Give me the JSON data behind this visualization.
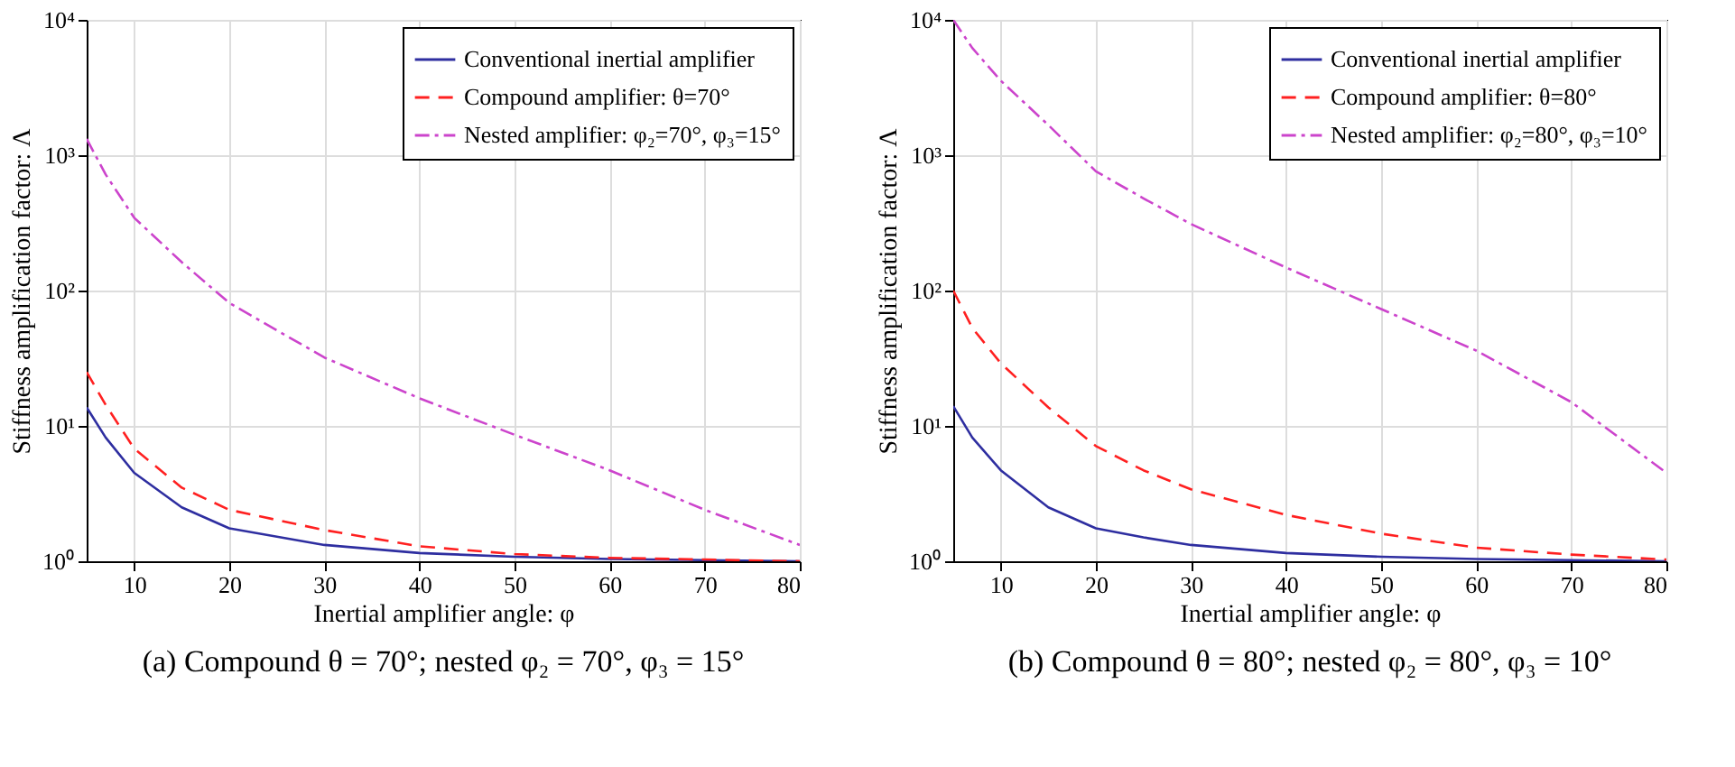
{
  "chart_data": [
    {
      "type": "line",
      "title": "(a) Compound θ = 70°; nested φ₂ = 70°, φ₃ = 15°",
      "xlabel": "Inertial amplifier angle: φ",
      "ylabel": "Stiffness amplification factor: Λ",
      "x": [
        5,
        7,
        10,
        15,
        20,
        30,
        40,
        50,
        60,
        70,
        80
      ],
      "xlim": [
        5,
        80
      ],
      "xticks": [
        10,
        20,
        30,
        40,
        50,
        60,
        70,
        80
      ],
      "log": "y",
      "ylim": [
        1,
        10000
      ],
      "yticks": [
        {
          "value": 1,
          "label": "10⁰"
        },
        {
          "value": 10,
          "label": "10¹"
        },
        {
          "value": 100,
          "label": "10²"
        },
        {
          "value": 1000,
          "label": "10³"
        },
        {
          "value": 10000,
          "label": "10⁴"
        }
      ],
      "grid": true,
      "legend": "top right",
      "series": [
        {
          "name": "Conventional inertial amplifier",
          "color": "#2e2ea0",
          "line_style": "solid",
          "values": [
            13.7,
            8.2,
            4.5,
            2.5,
            1.75,
            1.32,
            1.15,
            1.08,
            1.04,
            1.02,
            1.0
          ]
        },
        {
          "name": "Compound amplifier: θ=70°",
          "color": "#ff2020",
          "line_style": "dashed",
          "values": [
            25,
            14.3,
            6.8,
            3.5,
            2.4,
            1.7,
            1.29,
            1.13,
            1.06,
            1.03,
            1.0
          ]
        },
        {
          "name": "Nested amplifier: φ₂=70°, φ₃=15°",
          "color": "#cc44cc",
          "line_style": "dashdot",
          "values": [
            1320,
            720,
            345,
            162,
            81,
            32,
            16,
            8.6,
            4.7,
            2.4,
            1.32
          ]
        }
      ]
    },
    {
      "type": "line",
      "title": "(b) Compound θ = 80°; nested φ₂ = 80°, φ₃ = 10°",
      "xlabel": "Inertial amplifier angle: φ",
      "ylabel": "Stiffness amplification factor: Λ",
      "x": [
        5,
        7,
        10,
        15,
        20,
        25,
        30,
        40,
        50,
        60,
        70,
        80
      ],
      "xlim": [
        5,
        80
      ],
      "xticks": [
        10,
        20,
        30,
        40,
        50,
        60,
        70,
        80
      ],
      "log": "y",
      "ylim": [
        1,
        10000
      ],
      "yticks": [
        {
          "value": 1,
          "label": "10⁰"
        },
        {
          "value": 10,
          "label": "10¹"
        },
        {
          "value": 100,
          "label": "10²"
        },
        {
          "value": 1000,
          "label": "10³"
        },
        {
          "value": 10000,
          "label": "10⁴"
        }
      ],
      "grid": true,
      "legend": "top right",
      "series": [
        {
          "name": "Conventional inertial amplifier",
          "color": "#2e2ea0",
          "line_style": "solid",
          "values": [
            14,
            8.2,
            4.7,
            2.5,
            1.75,
            1.5,
            1.32,
            1.15,
            1.08,
            1.04,
            1.02,
            1.0
          ]
        },
        {
          "name": "Compound amplifier: θ=80°",
          "color": "#ff2020",
          "line_style": "dashed",
          "values": [
            100,
            53,
            29,
            13.7,
            7.1,
            4.7,
            3.4,
            2.2,
            1.6,
            1.26,
            1.12,
            1.03
          ]
        },
        {
          "name": "Nested amplifier: φ₂=80°, φ₃=10°",
          "color": "#cc44cc",
          "line_style": "dashdot",
          "values": [
            10000,
            6200,
            3550,
            1670,
            760,
            480,
            310,
            148,
            73,
            36,
            15,
            4.5
          ]
        }
      ]
    }
  ]
}
